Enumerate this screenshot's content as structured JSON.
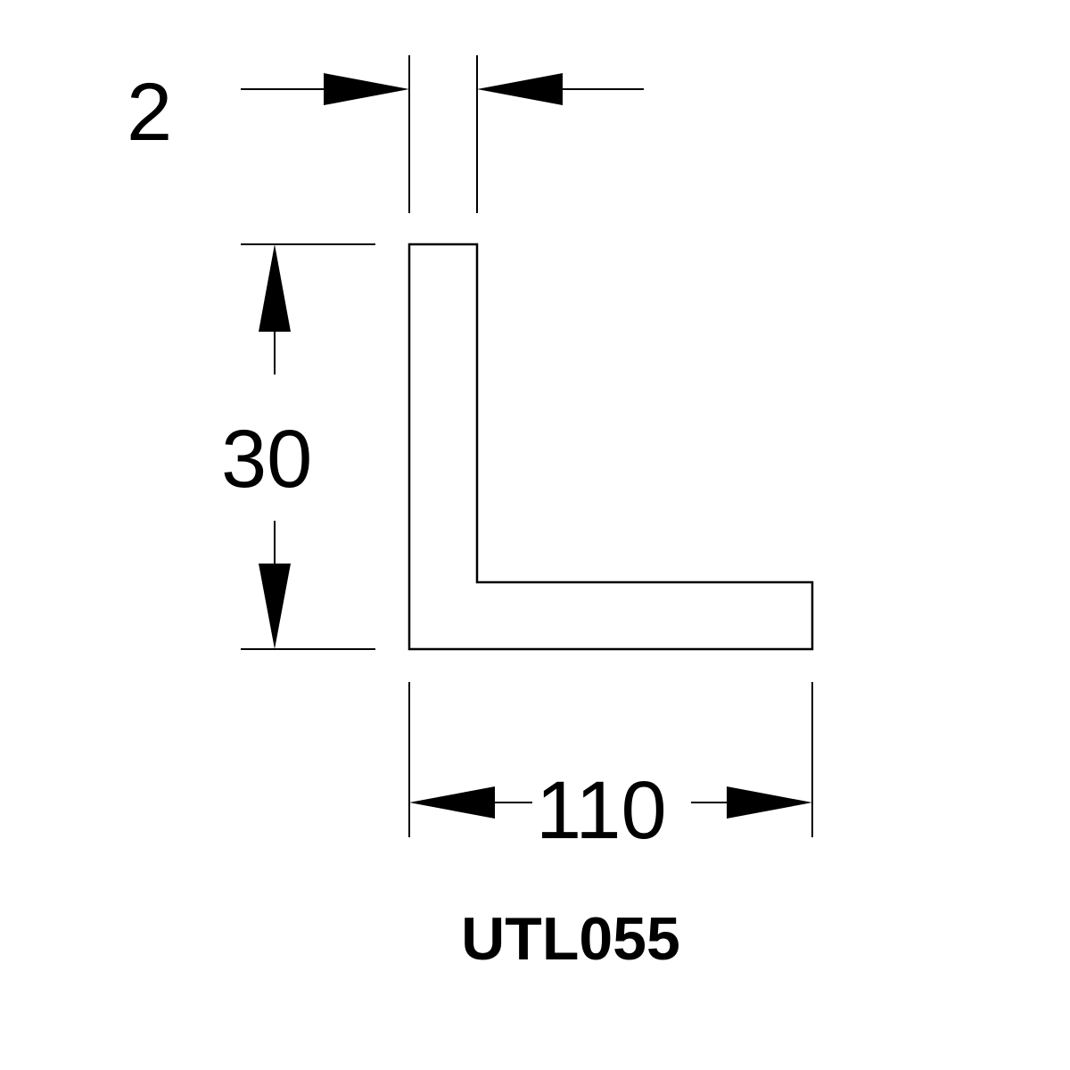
{
  "drawing": {
    "thickness_label": "2",
    "height_label": "30",
    "width_label": "110",
    "part_code": "UTL055"
  },
  "colors": {
    "line": "#000000",
    "background": "#ffffff"
  }
}
